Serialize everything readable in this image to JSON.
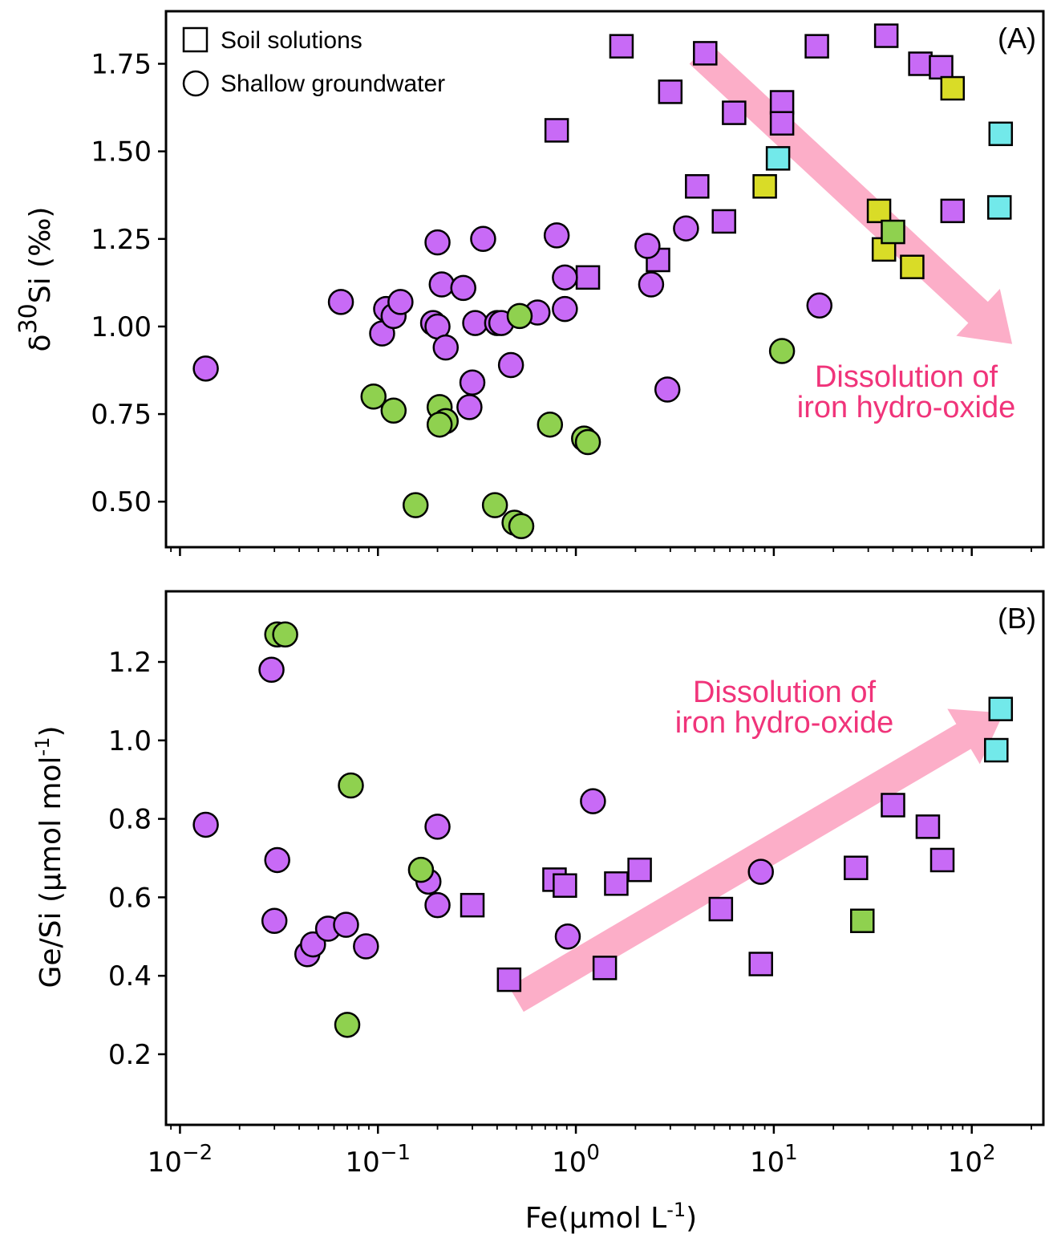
{
  "colors": {
    "purple": "#c86af6",
    "green": "#8fd14f",
    "yellow": "#d9dc27",
    "cyan": "#72e9ea",
    "arrow": "#fcaec8",
    "annotation": "#f0347a"
  },
  "legend": {
    "soil": "Soil solutions",
    "groundwater": "Shallow groundwater"
  },
  "chart_data": [
    {
      "type": "scatter",
      "panel_label": "(A)",
      "xscale": "log",
      "xlim": [
        0.0085,
        230
      ],
      "ylim": [
        0.37,
        1.9
      ],
      "ylabel": "δ30Si (‰)",
      "yticks": [
        "0.50",
        "0.75",
        "1.00",
        "1.25",
        "1.50",
        "1.75"
      ],
      "annotation": [
        "Dissolution of",
        "iron hydro-oxide"
      ],
      "arrow": {
        "from": [
          4.2,
          1.78
        ],
        "to": [
          160,
          0.95
        ]
      },
      "series": [
        {
          "marker": "square",
          "color": "purple",
          "points": [
            [
              1.7,
              1.8
            ],
            [
              0.8,
              1.56
            ],
            [
              3.0,
              1.67
            ],
            [
              4.5,
              1.78
            ],
            [
              6.3,
              1.61
            ],
            [
              11.0,
              1.64
            ],
            [
              11.0,
              1.58
            ],
            [
              16.5,
              1.8
            ],
            [
              37,
              1.83
            ],
            [
              55,
              1.75
            ],
            [
              70,
              1.74
            ],
            [
              4.1,
              1.4
            ],
            [
              5.6,
              1.3
            ],
            [
              2.6,
              1.19
            ],
            [
              1.15,
              1.14
            ],
            [
              80,
              1.33
            ]
          ]
        },
        {
          "marker": "square",
          "color": "yellow",
          "points": [
            [
              80,
              1.68
            ],
            [
              9.0,
              1.4
            ],
            [
              34,
              1.33
            ],
            [
              36,
              1.22
            ],
            [
              50,
              1.17
            ]
          ]
        },
        {
          "marker": "square",
          "color": "cyan",
          "points": [
            [
              10.5,
              1.48
            ],
            [
              140,
              1.55
            ],
            [
              138,
              1.34
            ]
          ]
        },
        {
          "marker": "square",
          "color": "green",
          "points": [
            [
              40,
              1.27
            ]
          ]
        },
        {
          "marker": "circle",
          "color": "purple",
          "points": [
            [
              0.0135,
              0.88
            ],
            [
              0.065,
              1.07
            ],
            [
              0.105,
              0.98
            ],
            [
              0.11,
              1.05
            ],
            [
              0.12,
              1.03
            ],
            [
              0.13,
              1.07
            ],
            [
              0.19,
              1.01
            ],
            [
              0.2,
              1.24
            ],
            [
              0.2,
              1.0
            ],
            [
              0.21,
              1.12
            ],
            [
              0.22,
              0.94
            ],
            [
              0.27,
              1.11
            ],
            [
              0.3,
              0.84
            ],
            [
              0.29,
              0.77
            ],
            [
              0.31,
              1.01
            ],
            [
              0.34,
              1.25
            ],
            [
              0.4,
              1.01
            ],
            [
              0.42,
              1.01
            ],
            [
              0.47,
              0.89
            ],
            [
              0.64,
              1.04
            ],
            [
              0.8,
              1.26
            ],
            [
              0.88,
              1.14
            ],
            [
              0.88,
              1.05
            ],
            [
              2.3,
              1.23
            ],
            [
              2.4,
              1.12
            ],
            [
              2.9,
              0.82
            ],
            [
              3.6,
              1.28
            ],
            [
              17,
              1.06
            ]
          ]
        },
        {
          "marker": "circle",
          "color": "green",
          "points": [
            [
              0.095,
              0.8
            ],
            [
              0.12,
              0.76
            ],
            [
              0.155,
              0.49
            ],
            [
              0.205,
              0.77
            ],
            [
              0.22,
              0.73
            ],
            [
              0.205,
              0.72
            ],
            [
              0.39,
              0.49
            ],
            [
              0.49,
              0.44
            ],
            [
              0.53,
              0.43
            ],
            [
              0.52,
              1.03
            ],
            [
              0.74,
              0.72
            ],
            [
              1.1,
              0.68
            ],
            [
              1.15,
              0.67
            ],
            [
              11,
              0.93
            ]
          ]
        }
      ]
    },
    {
      "type": "scatter",
      "panel_label": "(B)",
      "xscale": "log",
      "xlim": [
        0.0085,
        230
      ],
      "ylim": [
        0.02,
        1.38
      ],
      "xlabel": "Fe(µmol L-1)",
      "ylabel": "Ge/Si (µmol mol-1)",
      "yticks": [
        "0.2",
        "0.4",
        "0.6",
        "0.8",
        "1.0",
        "1.2"
      ],
      "xticks": [
        0.01,
        0.1,
        1,
        10,
        100
      ],
      "annotation": [
        "Dissolution of",
        "iron hydro-oxide"
      ],
      "arrow": {
        "from": [
          0.5,
          0.34
        ],
        "to": [
          145,
          1.07
        ]
      },
      "series": [
        {
          "marker": "square",
          "color": "purple",
          "points": [
            [
              0.46,
              0.39
            ],
            [
              0.3,
              0.58
            ],
            [
              0.78,
              0.645
            ],
            [
              0.88,
              0.63
            ],
            [
              1.4,
              0.42
            ],
            [
              1.6,
              0.635
            ],
            [
              2.1,
              0.67
            ],
            [
              5.4,
              0.57
            ],
            [
              8.6,
              0.43
            ],
            [
              26,
              0.675
            ],
            [
              40,
              0.835
            ],
            [
              60,
              0.78
            ],
            [
              71,
              0.695
            ]
          ]
        },
        {
          "marker": "square",
          "color": "cyan",
          "points": [
            [
              140,
              1.08
            ],
            [
              133,
              0.975
            ]
          ]
        },
        {
          "marker": "square",
          "color": "green",
          "points": [
            [
              28,
              0.54
            ]
          ]
        },
        {
          "marker": "circle",
          "color": "purple",
          "points": [
            [
              0.0135,
              0.785
            ],
            [
              0.029,
              1.18
            ],
            [
              0.03,
              0.54
            ],
            [
              0.031,
              0.695
            ],
            [
              0.044,
              0.455
            ],
            [
              0.047,
              0.48
            ],
            [
              0.056,
              0.52
            ],
            [
              0.069,
              0.53
            ],
            [
              0.087,
              0.475
            ],
            [
              0.18,
              0.64
            ],
            [
              0.2,
              0.58
            ],
            [
              0.2,
              0.78
            ],
            [
              0.91,
              0.5
            ],
            [
              1.22,
              0.845
            ],
            [
              8.6,
              0.665
            ]
          ]
        },
        {
          "marker": "circle",
          "color": "green",
          "points": [
            [
              0.031,
              1.27
            ],
            [
              0.034,
              1.27
            ],
            [
              0.073,
              0.885
            ],
            [
              0.07,
              0.275
            ],
            [
              0.165,
              0.67
            ]
          ]
        }
      ]
    }
  ]
}
